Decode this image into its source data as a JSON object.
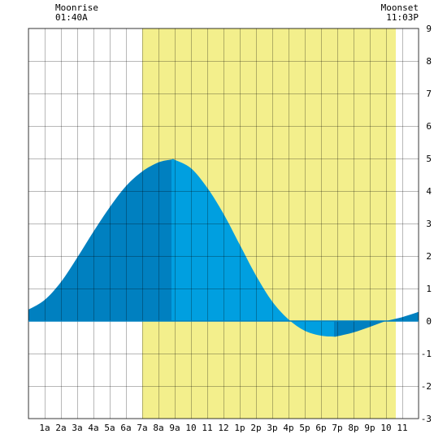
{
  "moon": {
    "rise_label": "Moonrise",
    "rise_time": "01:40A",
    "set_label": "Moonset",
    "set_time": "11:03P"
  },
  "colors": {
    "daylight": "#f3ef8c",
    "tide_day": "#009fe0",
    "tide_night": "#0080c0",
    "grid": "#000000",
    "axis_line": "#0080c0"
  },
  "chart_data": {
    "type": "area",
    "title": "",
    "xlabel": "",
    "ylabel": "",
    "xlim": [
      0,
      24
    ],
    "ylim": [
      -3,
      9
    ],
    "grid": true,
    "x_tick_labels": [
      "1a",
      "2a",
      "3a",
      "4a",
      "5a",
      "6a",
      "7a",
      "8a",
      "9a",
      "10",
      "11",
      "12",
      "1p",
      "2p",
      "3p",
      "4p",
      "5p",
      "6p",
      "7p",
      "8p",
      "9p",
      "10",
      "11"
    ],
    "y_tick_labels": [
      "9",
      "8",
      "7",
      "6",
      "5",
      "4",
      "3",
      "2",
      "1",
      "0",
      "-1",
      "-2",
      "-3"
    ],
    "daylight": {
      "start_hour": 7.0,
      "end_hour": 22.6
    },
    "series": [
      {
        "x": [
          0,
          1,
          2,
          3,
          4,
          5,
          6,
          7,
          8,
          8.8,
          9,
          10,
          11,
          12,
          13,
          14,
          15,
          16,
          17,
          18,
          18.8,
          19,
          20,
          21,
          22,
          23,
          24
        ],
        "values": [
          0.35,
          0.65,
          1.2,
          1.95,
          2.75,
          3.5,
          4.15,
          4.6,
          4.88,
          4.97,
          4.96,
          4.7,
          4.1,
          3.3,
          2.35,
          1.4,
          0.6,
          0.05,
          -0.3,
          -0.45,
          -0.48,
          -0.47,
          -0.35,
          -0.18,
          0.0,
          0.12,
          0.28
        ]
      }
    ],
    "peak_hour": 8.8,
    "trough_hour": 18.8
  }
}
